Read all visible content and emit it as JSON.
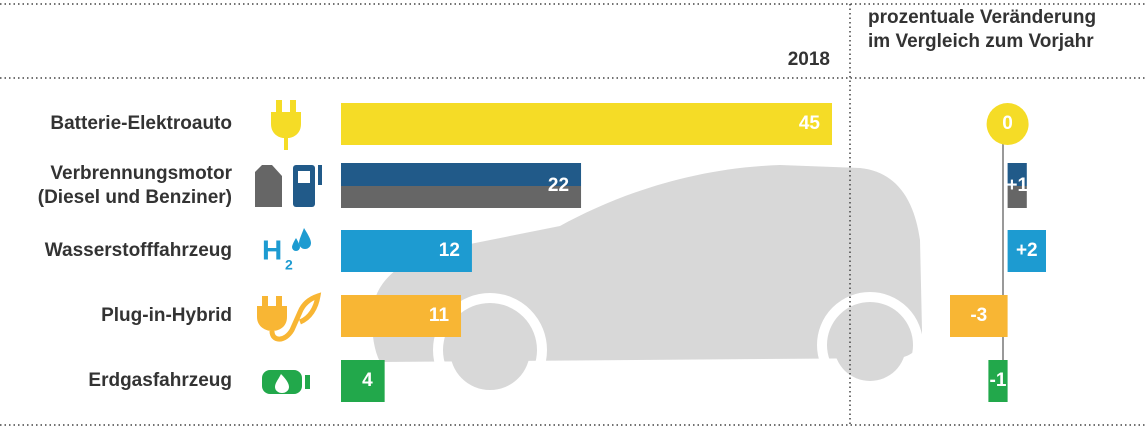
{
  "chart_data": {
    "type": "bar",
    "orientation": "horizontal",
    "column_header": "2018",
    "change_header": "prozentuale Veränderung\nim Vergleich zum Vorjahr",
    "categories": [
      "Batterie-Elektroauto",
      "Verbrennungsmotor\n(Diesel und Benziner)",
      "Wasserstofffahrzeug",
      "Plug-in-Hybrid",
      "Erdgasfahrzeug"
    ],
    "values": [
      45,
      22,
      12,
      11,
      4
    ],
    "colors": [
      "#f5dc26",
      [
        "#215a89",
        "#666666"
      ],
      "#1d9bd1",
      "#f8b634",
      "#22a84b"
    ],
    "xlim": [
      0,
      45
    ],
    "change_values": [
      0,
      1,
      2,
      -3,
      -1
    ],
    "change_value_labels": [
      "0",
      "+1",
      "+2",
      "-3",
      "-1"
    ],
    "change_lim": [
      -3,
      2
    ]
  }
}
